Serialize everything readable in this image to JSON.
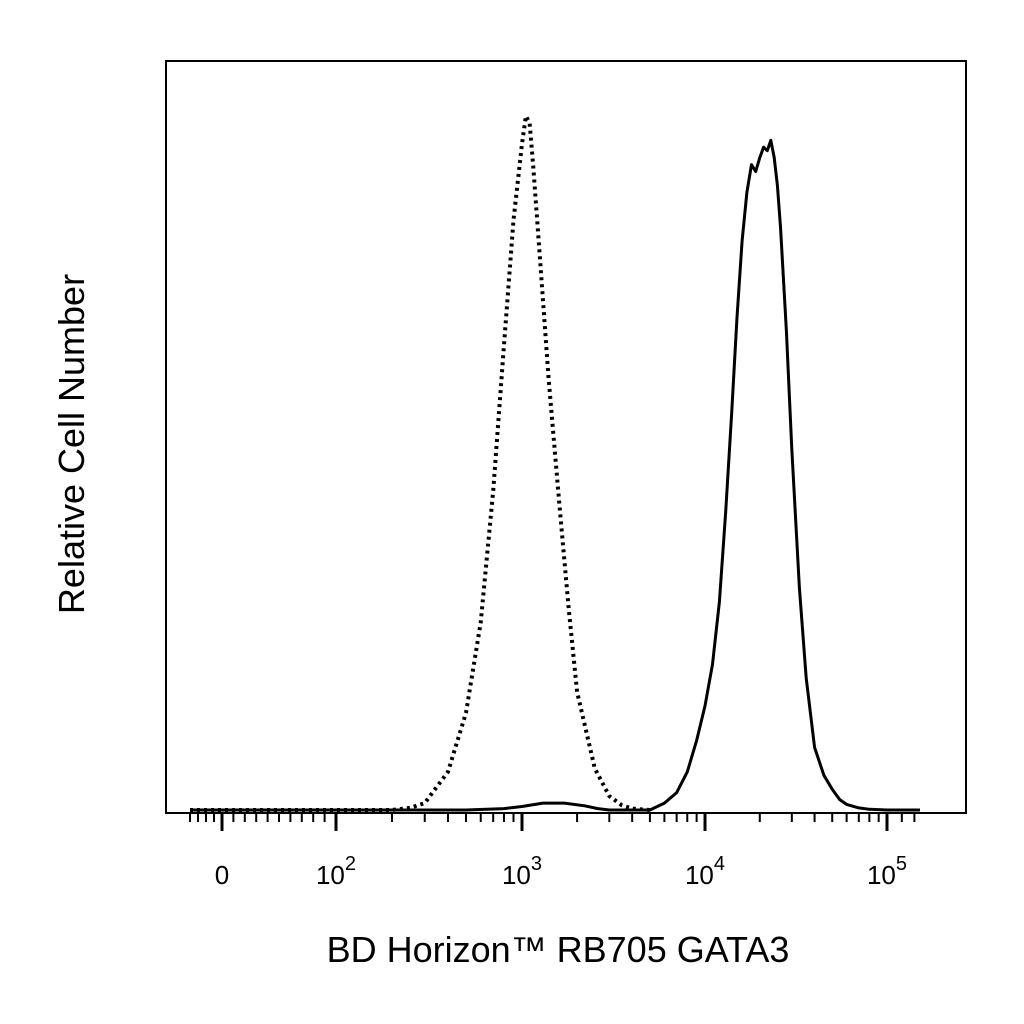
{
  "chart_data": {
    "type": "line",
    "title": "",
    "xlabel": "BD Horizon™ RB705 GATA3",
    "ylabel": "Relative Cell Number",
    "x_scale": "biexponential",
    "xlim": [
      -40,
      150000
    ],
    "ylim": [
      0,
      100
    ],
    "grid": false,
    "legend": "none",
    "x_ticks": [
      {
        "value": 0,
        "base": "0",
        "exp": ""
      },
      {
        "value": 100,
        "base": "10",
        "exp": "2"
      },
      {
        "value": 1000,
        "base": "10",
        "exp": "3"
      },
      {
        "value": 10000,
        "base": "10",
        "exp": "4"
      },
      {
        "value": 100000,
        "base": "10",
        "exp": "5"
      }
    ],
    "series": [
      {
        "style": "dotted",
        "color": "#000000",
        "x": [
          -40,
          0,
          50,
          100,
          150,
          200,
          250,
          300,
          400,
          500,
          600,
          700,
          800,
          900,
          1000,
          1050,
          1100,
          1150,
          1250,
          1400,
          1600,
          1800,
          2000,
          2500,
          3000,
          3500,
          4000,
          5000
        ],
        "y": [
          0,
          0,
          0,
          0,
          0,
          0,
          0.3,
          1,
          5.5,
          14,
          27,
          46,
          67,
          85,
          96,
          100,
          99,
          93,
          80,
          62,
          44,
          29,
          17,
          6,
          2,
          0.7,
          0.2,
          0
        ]
      },
      {
        "style": "solid",
        "color": "#000000",
        "x": [
          -40,
          0,
          100,
          500,
          800,
          1000,
          1300,
          1700,
          2200,
          2600,
          3000,
          5000,
          6000,
          7000,
          8000,
          9000,
          10000,
          11000,
          12000,
          13000,
          14000,
          15000,
          16000,
          17000,
          18000,
          19000,
          20000,
          21000,
          22000,
          23000,
          24000,
          25000,
          26000,
          28000,
          30000,
          33000,
          36000,
          40000,
          45000,
          50000,
          55000,
          60000,
          70000,
          80000,
          100000,
          150000
        ],
        "y": [
          0,
          0,
          0,
          0,
          0.2,
          0.5,
          1,
          1,
          0.6,
          0.2,
          0,
          0,
          1,
          2.5,
          5.5,
          10,
          15,
          21,
          30,
          43,
          57,
          71,
          82,
          89,
          93,
          92,
          94,
          95.5,
          95,
          96.5,
          94,
          90,
          84,
          69,
          52,
          32,
          19,
          9,
          5,
          3,
          1.5,
          0.8,
          0.3,
          0.1,
          0,
          0
        ]
      }
    ]
  }
}
